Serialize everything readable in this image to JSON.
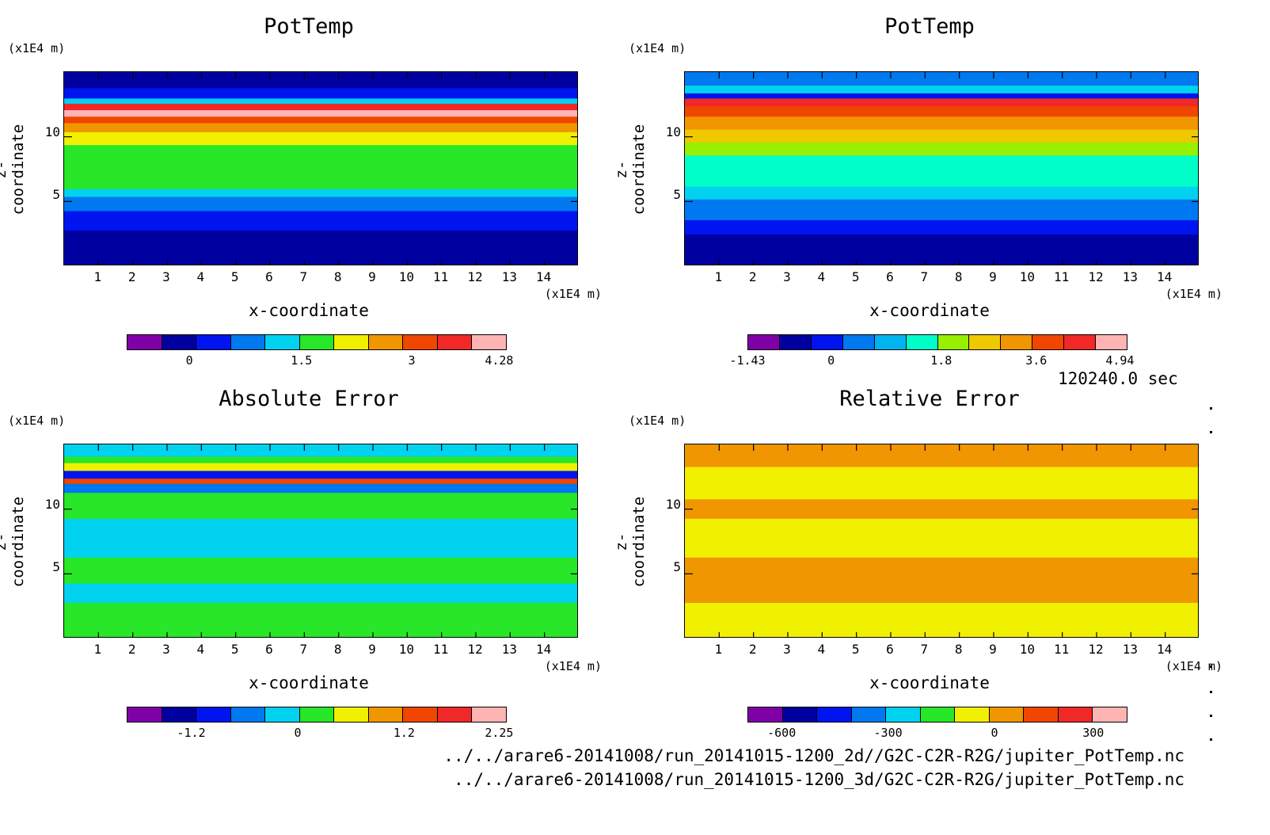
{
  "colorscale": [
    "#8000a8",
    "#0000a0",
    "#0014f0",
    "#0078f0",
    "#00d2f0",
    "#28e628",
    "#f0f000",
    "#f09600",
    "#f04600",
    "#f02828",
    "#ffb4b4"
  ],
  "panels": [
    {
      "title": "PotTemp",
      "y_unit": "(x1E4 m)",
      "x_unit": "(x1E4 m)",
      "ylabel": "z-coordinate",
      "xlabel": "x-coordinate",
      "yticks": [
        "5",
        "10"
      ],
      "xticks": [
        "1",
        "2",
        "3",
        "4",
        "5",
        "6",
        "7",
        "8",
        "9",
        "10",
        "11",
        "12",
        "13",
        "14"
      ],
      "colorbar_ticks": [
        "0",
        "1.5",
        "3",
        "4.28"
      ]
    },
    {
      "title": "PotTemp",
      "y_unit": "(x1E4 m)",
      "x_unit": "(x1E4 m)",
      "ylabel": "z-coordinate",
      "xlabel": "x-coordinate",
      "yticks": [
        "5",
        "10"
      ],
      "xticks": [
        "1",
        "2",
        "3",
        "4",
        "5",
        "6",
        "7",
        "8",
        "9",
        "10",
        "11",
        "12",
        "13",
        "14"
      ],
      "colorbar_ticks": [
        "-1.43",
        "0",
        "1.8",
        "3.6",
        "4.94"
      ]
    },
    {
      "title": "Absolute Error",
      "y_unit": "(x1E4 m)",
      "x_unit": "(x1E4 m)",
      "ylabel": "z-coordinate",
      "xlabel": "x-coordinate",
      "yticks": [
        "5",
        "10"
      ],
      "xticks": [
        "1",
        "2",
        "3",
        "4",
        "5",
        "6",
        "7",
        "8",
        "9",
        "10",
        "11",
        "12",
        "13",
        "14"
      ],
      "colorbar_ticks": [
        "-1.2",
        "0",
        "1.2",
        "2.25"
      ]
    },
    {
      "title": "Relative Error",
      "y_unit": "(x1E4 m)",
      "x_unit": "(x1E4 m)",
      "ylabel": "z-coordinate",
      "xlabel": "x-coordinate",
      "yticks": [
        "5",
        "10"
      ],
      "xticks": [
        "1",
        "2",
        "3",
        "4",
        "5",
        "6",
        "7",
        "8",
        "9",
        "10",
        "11",
        "12",
        "13",
        "14"
      ],
      "colorbar_ticks": [
        "-600",
        "-300",
        "0",
        "300"
      ]
    }
  ],
  "time_label": "120240.0 sec",
  "file_paths": [
    "../../arare6-20141008/run_20141015-1200_2d//G2C-C2R-R2G/jupiter_PotTemp.nc",
    "../../arare6-20141008/run_20141015-1200_3d/G2C-C2R-R2G/jupiter_PotTemp.nc"
  ],
  "chart_data": [
    {
      "type": "heatmap",
      "title": "PotTemp",
      "xlabel": "x-coordinate",
      "ylabel": "z-coordinate",
      "x_unit": "(x1E4 m)",
      "y_unit": "(x1E4 m)",
      "xlim": [
        0,
        15
      ],
      "ylim": [
        0,
        15
      ],
      "colorbar": {
        "ticks": [
          0,
          1.5,
          3,
          4.28
        ]
      },
      "layers": [
        {
          "z_top": 3,
          "color": "#0000a0"
        },
        {
          "z_top": 4.5,
          "color": "#0014f0"
        },
        {
          "z_top": 5.6,
          "color": "#0078f0"
        },
        {
          "z_top": 6.2,
          "color": "#00d2f0"
        },
        {
          "z_top": 9.6,
          "color": "#28e628"
        },
        {
          "z_top": 10.6,
          "color": "#f0f000"
        },
        {
          "z_top": 11.3,
          "color": "#f09600"
        },
        {
          "z_top": 11.8,
          "color": "#f04600"
        },
        {
          "z_top": 12.3,
          "color": "#ffb4b4"
        },
        {
          "z_top": 12.8,
          "color": "#f02828"
        },
        {
          "z_top": 13.2,
          "color": "#00d2f0"
        },
        {
          "z_top": 14,
          "color": "#0014f0"
        },
        {
          "z_top": 15,
          "color": "#0000a0"
        }
      ]
    },
    {
      "type": "heatmap",
      "title": "PotTemp",
      "xlabel": "x-coordinate",
      "ylabel": "z-coordinate",
      "x_unit": "(x1E4 m)",
      "y_unit": "(x1E4 m)",
      "xlim": [
        0,
        15
      ],
      "ylim": [
        0,
        15
      ],
      "colorbar": {
        "ticks": [
          -1.43,
          0,
          1.8,
          3.6,
          4.94
        ]
      },
      "layers": [
        {
          "z_top": 2.7,
          "color": "#0000a0"
        },
        {
          "z_top": 3.8,
          "color": "#0014f0"
        },
        {
          "z_top": 5.4,
          "color": "#0078f0"
        },
        {
          "z_top": 6.4,
          "color": "#00d2f0"
        },
        {
          "z_top": 8.8,
          "color": "#00ffc8"
        },
        {
          "z_top": 9.8,
          "color": "#96f000"
        },
        {
          "z_top": 10.8,
          "color": "#f0c800"
        },
        {
          "z_top": 11.8,
          "color": "#f09600"
        },
        {
          "z_top": 12.6,
          "color": "#f04600"
        },
        {
          "z_top": 13.2,
          "color": "#f02828"
        },
        {
          "z_top": 13.6,
          "color": "#0014f0"
        },
        {
          "z_top": 14.2,
          "color": "#00d2f0"
        },
        {
          "z_top": 15,
          "color": "#0078f0"
        }
      ]
    },
    {
      "type": "heatmap",
      "title": "Absolute Error",
      "xlabel": "x-coordinate",
      "ylabel": "z-coordinate",
      "x_unit": "(x1E4 m)",
      "y_unit": "(x1E4 m)",
      "xlim": [
        0,
        15
      ],
      "ylim": [
        0,
        15
      ],
      "colorbar": {
        "ticks": [
          -1.2,
          0,
          1.2,
          2.25
        ]
      },
      "layers": [
        {
          "z_top": 3,
          "color": "#28e628"
        },
        {
          "z_top": 4.5,
          "color": "#00d2f0"
        },
        {
          "z_top": 6.5,
          "color": "#28e628"
        },
        {
          "z_top": 9.5,
          "color": "#00d2f0"
        },
        {
          "z_top": 11.5,
          "color": "#28e628"
        },
        {
          "z_top": 12.2,
          "color": "#0078f0"
        },
        {
          "z_top": 12.6,
          "color": "#f04600"
        },
        {
          "z_top": 13.2,
          "color": "#0014f0"
        },
        {
          "z_top": 13.8,
          "color": "#f0f000"
        },
        {
          "z_top": 14.3,
          "color": "#28e628"
        },
        {
          "z_top": 15,
          "color": "#00d2f0"
        }
      ]
    },
    {
      "type": "heatmap",
      "title": "Relative Error",
      "xlabel": "x-coordinate",
      "ylabel": "z-coordinate",
      "x_unit": "(x1E4 m)",
      "y_unit": "(x1E4 m)",
      "xlim": [
        0,
        15
      ],
      "ylim": [
        0,
        15
      ],
      "colorbar": {
        "ticks": [
          -600,
          -300,
          0,
          300
        ]
      },
      "layers": [
        {
          "z_top": 3,
          "color": "#f0f000"
        },
        {
          "z_top": 6.5,
          "color": "#f09600"
        },
        {
          "z_top": 9.5,
          "color": "#f0f000"
        },
        {
          "z_top": 11,
          "color": "#f09600"
        },
        {
          "z_top": 13.5,
          "color": "#f0f000"
        },
        {
          "z_top": 15,
          "color": "#f09600"
        }
      ]
    }
  ]
}
